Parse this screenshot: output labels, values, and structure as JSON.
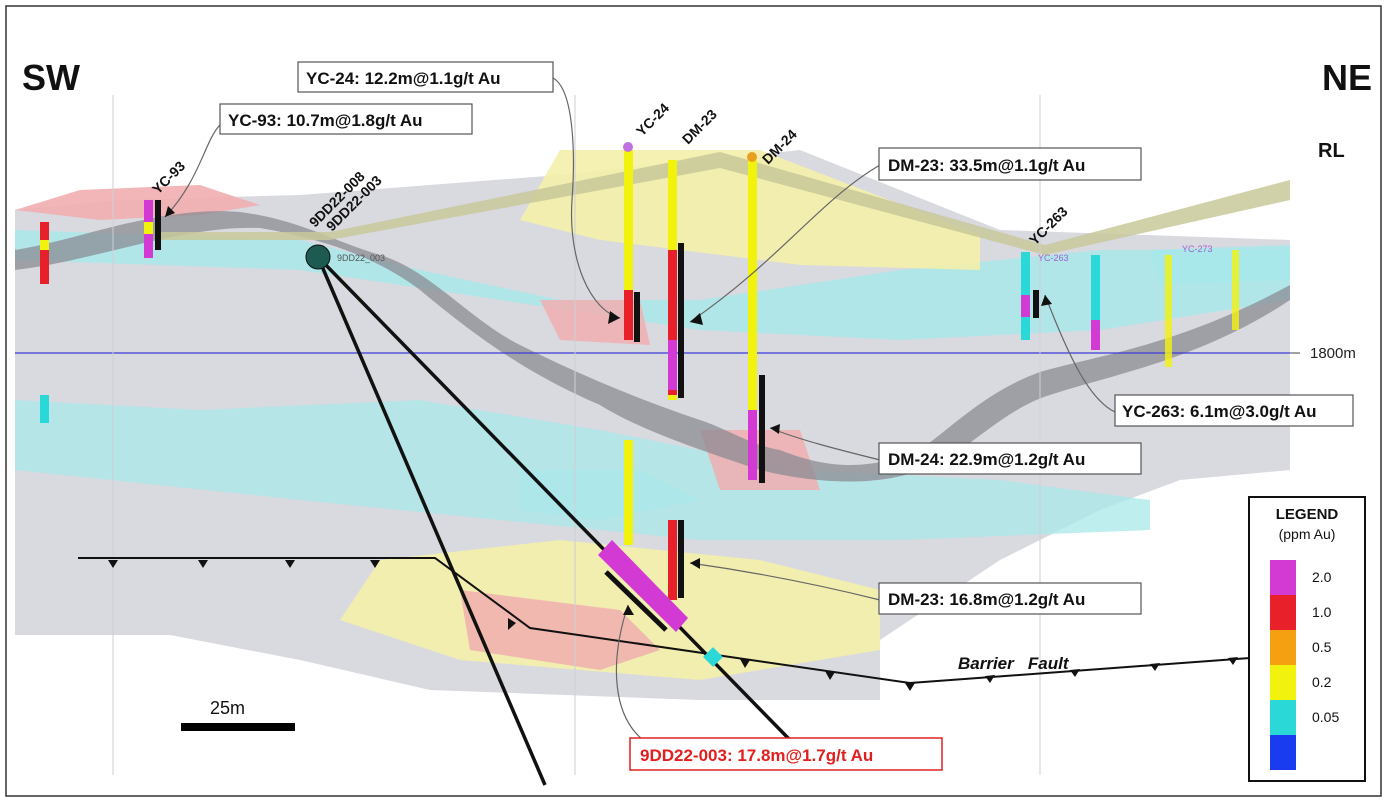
{
  "orientation": {
    "left": "SW",
    "right": "NE",
    "rl": "RL"
  },
  "elevation_marker": {
    "label": "1800m"
  },
  "scale_bar": {
    "label": "25m"
  },
  "fault": {
    "name": "Barrier   Fault"
  },
  "legend": {
    "title": "LEGEND",
    "subtitle": "(ppm Au)",
    "entries": [
      {
        "value": "2.0",
        "color": "#d33ad3"
      },
      {
        "value": "1.0",
        "color": "#e8202a"
      },
      {
        "value": "0.5",
        "color": "#f5a010"
      },
      {
        "value": "0.2",
        "color": "#f2f20f"
      },
      {
        "value": "0.05",
        "color": "#2ad8d8"
      },
      {
        "value": "",
        "color": "#1a3cf0"
      }
    ]
  },
  "holes": {
    "yc93": "YC-93",
    "yc24": "YC-24",
    "dm23": "DM-23",
    "dm24": "DM-24",
    "yc263": "YC-263",
    "h9dd008": "9DD22-008",
    "h9dd003": "9DD22-003",
    "small_9dd": "9DD22_003",
    "small_yc263": "YC-263",
    "small_yc273": "YC-273"
  },
  "callouts": {
    "yc24": "YC-24: 12.2m@1.1g/t Au",
    "yc93": "YC-93: 10.7m@1.8g/t Au",
    "dm23a": "DM-23: 33.5m@1.1g/t Au",
    "yc263": "YC-263: 6.1m@3.0g/t Au",
    "dm24": "DM-24: 22.9m@1.2g/t Au",
    "dm23b": "DM-23: 16.8m@1.2g/t Au",
    "dd003": "9DD22-003: 17.8m@1.7g/t Au"
  },
  "colors": {
    "highlight": "#e0201e",
    "grade_block_grey": "#d9d9e0",
    "structure": "#c8c89a"
  }
}
